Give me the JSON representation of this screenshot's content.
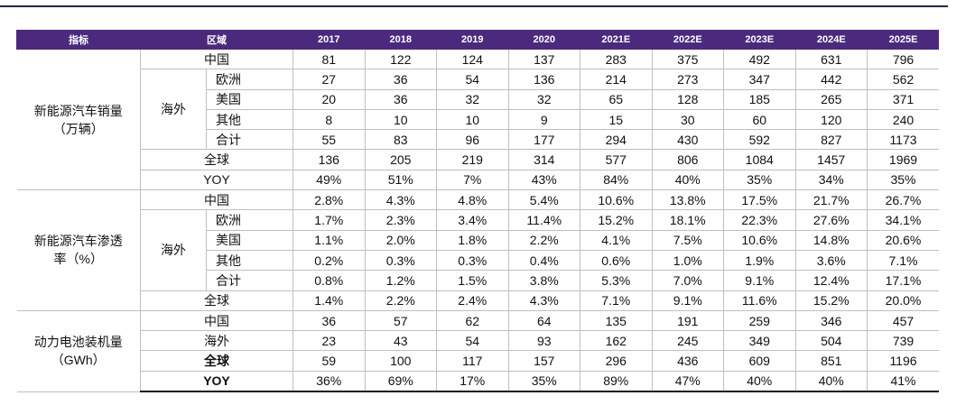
{
  "table": {
    "header": [
      "指标",
      "区域",
      "2017",
      "2018",
      "2019",
      "2020",
      "2021E",
      "2022E",
      "2023E",
      "2024E",
      "2025E"
    ],
    "sections": [
      {
        "label": [
          "新能源汽车销量",
          "（万辆）"
        ],
        "rows": [
          {
            "region": "中国",
            "values": [
              "81",
              "122",
              "124",
              "137",
              "283",
              "375",
              "492",
              "631",
              "796"
            ]
          },
          {
            "group": "海外",
            "rows": [
              {
                "region": "欧洲",
                "values": [
                  "27",
                  "36",
                  "54",
                  "136",
                  "214",
                  "273",
                  "347",
                  "442",
                  "562"
                ]
              },
              {
                "region": "美国",
                "values": [
                  "20",
                  "36",
                  "32",
                  "32",
                  "65",
                  "128",
                  "185",
                  "265",
                  "371"
                ]
              },
              {
                "region": "其他",
                "values": [
                  "8",
                  "10",
                  "10",
                  "9",
                  "15",
                  "30",
                  "60",
                  "120",
                  "240"
                ]
              },
              {
                "region": "合计",
                "values": [
                  "55",
                  "83",
                  "96",
                  "177",
                  "294",
                  "430",
                  "592",
                  "827",
                  "1173"
                ]
              }
            ]
          },
          {
            "region": "全球",
            "values": [
              "136",
              "205",
              "219",
              "314",
              "577",
              "806",
              "1084",
              "1457",
              "1969"
            ]
          },
          {
            "region": "YOY",
            "values": [
              "49%",
              "51%",
              "7%",
              "43%",
              "84%",
              "40%",
              "35%",
              "34%",
              "35%"
            ]
          }
        ]
      },
      {
        "label": [
          "新能源汽车渗透",
          "率（%）"
        ],
        "rows": [
          {
            "region": "中国",
            "values": [
              "2.8%",
              "4.3%",
              "4.8%",
              "5.4%",
              "10.6%",
              "13.8%",
              "17.5%",
              "21.7%",
              "26.7%"
            ]
          },
          {
            "group": "海外",
            "rows": [
              {
                "region": "欧洲",
                "values": [
                  "1.7%",
                  "2.3%",
                  "3.4%",
                  "11.4%",
                  "15.2%",
                  "18.1%",
                  "22.3%",
                  "27.6%",
                  "34.1%"
                ]
              },
              {
                "region": "美国",
                "values": [
                  "1.1%",
                  "2.0%",
                  "1.8%",
                  "2.2%",
                  "4.1%",
                  "7.5%",
                  "10.6%",
                  "14.8%",
                  "20.6%"
                ]
              },
              {
                "region": "其他",
                "values": [
                  "0.2%",
                  "0.3%",
                  "0.3%",
                  "0.4%",
                  "0.6%",
                  "1.0%",
                  "1.9%",
                  "3.6%",
                  "7.1%"
                ]
              },
              {
                "region": "合计",
                "values": [
                  "0.8%",
                  "1.2%",
                  "1.5%",
                  "3.8%",
                  "5.3%",
                  "7.0%",
                  "9.1%",
                  "12.4%",
                  "17.1%"
                ]
              }
            ]
          },
          {
            "region": "全球",
            "values": [
              "1.4%",
              "2.2%",
              "2.4%",
              "4.3%",
              "7.1%",
              "9.1%",
              "11.6%",
              "15.2%",
              "20.0%"
            ]
          }
        ]
      },
      {
        "label": [
          "动力电池装机量",
          "（GWh）"
        ],
        "rows": [
          {
            "region": "中国",
            "values": [
              "36",
              "57",
              "62",
              "64",
              "135",
              "191",
              "259",
              "346",
              "457"
            ]
          },
          {
            "region": "海外",
            "values": [
              "23",
              "43",
              "54",
              "93",
              "162",
              "245",
              "349",
              "504",
              "739"
            ]
          },
          {
            "region": "全球",
            "bold": true,
            "values": [
              "59",
              "100",
              "117",
              "157",
              "296",
              "436",
              "609",
              "851",
              "1196"
            ]
          },
          {
            "region": "YOY",
            "bold": true,
            "values": [
              "36%",
              "69%",
              "17%",
              "35%",
              "89%",
              "47%",
              "40%",
              "40%",
              "41%"
            ]
          }
        ]
      }
    ]
  }
}
